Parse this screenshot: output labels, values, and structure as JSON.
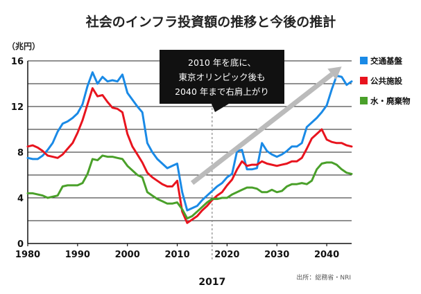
{
  "chart_data": {
    "type": "line",
    "title": "社会のインフラ投資額の推移と今後の推計",
    "ylabel": "（兆円）",
    "xlabel": "",
    "xlim": [
      1980,
      2045
    ],
    "ylim": [
      0,
      16
    ],
    "x_ticks": [
      "1980",
      "1990",
      "2000",
      "2010",
      "2020",
      "2030",
      "2040"
    ],
    "y_ticks": [
      "0",
      "4",
      "8",
      "12",
      "16"
    ],
    "grid": "horizontal",
    "legend_position": "right",
    "series": [
      {
        "name": "交通基盤",
        "color": "#1a8ae6",
        "points": [
          [
            1980,
            7.5
          ],
          [
            1981,
            7.4
          ],
          [
            1982,
            7.4
          ],
          [
            1983,
            7.7
          ],
          [
            1984,
            8.2
          ],
          [
            1985,
            8.8
          ],
          [
            1986,
            9.8
          ],
          [
            1987,
            10.5
          ],
          [
            1988,
            10.7
          ],
          [
            1989,
            11.0
          ],
          [
            1990,
            11.4
          ],
          [
            1991,
            12.2
          ],
          [
            1992,
            13.8
          ],
          [
            1993,
            15.0
          ],
          [
            1994,
            14.0
          ],
          [
            1995,
            14.6
          ],
          [
            1996,
            14.2
          ],
          [
            1997,
            14.3
          ],
          [
            1998,
            14.2
          ],
          [
            1999,
            14.8
          ],
          [
            2000,
            13.2
          ],
          [
            2001,
            12.6
          ],
          [
            2002,
            12.0
          ],
          [
            2003,
            11.5
          ],
          [
            2004,
            8.8
          ],
          [
            2005,
            8.0
          ],
          [
            2006,
            7.4
          ],
          [
            2007,
            7.0
          ],
          [
            2008,
            6.6
          ],
          [
            2009,
            6.8
          ],
          [
            2010,
            7.0
          ],
          [
            2011,
            4.5
          ],
          [
            2012,
            2.9
          ],
          [
            2013,
            3.1
          ],
          [
            2014,
            3.3
          ],
          [
            2015,
            3.8
          ],
          [
            2016,
            4.2
          ],
          [
            2017,
            4.6
          ],
          [
            2018,
            5.0
          ],
          [
            2019,
            5.3
          ],
          [
            2020,
            5.8
          ],
          [
            2021,
            6.1
          ],
          [
            2022,
            8.1
          ],
          [
            2023,
            8.2
          ],
          [
            2024,
            6.5
          ],
          [
            2025,
            6.5
          ],
          [
            2026,
            6.6
          ],
          [
            2027,
            8.8
          ],
          [
            2028,
            8.1
          ],
          [
            2029,
            7.8
          ],
          [
            2030,
            7.6
          ],
          [
            2031,
            7.8
          ],
          [
            2032,
            8.1
          ],
          [
            2033,
            8.5
          ],
          [
            2034,
            8.5
          ],
          [
            2035,
            8.8
          ],
          [
            2036,
            10.2
          ],
          [
            2037,
            10.6
          ],
          [
            2038,
            11.0
          ],
          [
            2039,
            11.5
          ],
          [
            2040,
            12.1
          ],
          [
            2041,
            13.5
          ],
          [
            2042,
            14.7
          ],
          [
            2043,
            14.6
          ],
          [
            2044,
            13.9
          ],
          [
            2045,
            14.2
          ]
        ]
      },
      {
        "name": "公共施設",
        "color": "#e8141e",
        "points": [
          [
            1980,
            8.5
          ],
          [
            1981,
            8.6
          ],
          [
            1982,
            8.4
          ],
          [
            1983,
            8.1
          ],
          [
            1984,
            7.7
          ],
          [
            1985,
            7.6
          ],
          [
            1986,
            7.5
          ],
          [
            1987,
            7.8
          ],
          [
            1988,
            8.3
          ],
          [
            1989,
            8.8
          ],
          [
            1990,
            9.7
          ],
          [
            1991,
            10.8
          ],
          [
            1992,
            12.2
          ],
          [
            1993,
            13.6
          ],
          [
            1994,
            12.9
          ],
          [
            1995,
            13.0
          ],
          [
            1996,
            12.4
          ],
          [
            1997,
            11.9
          ],
          [
            1998,
            11.8
          ],
          [
            1999,
            11.5
          ],
          [
            2000,
            9.6
          ],
          [
            2001,
            8.5
          ],
          [
            2002,
            7.8
          ],
          [
            2003,
            7.1
          ],
          [
            2004,
            6.2
          ],
          [
            2005,
            5.8
          ],
          [
            2006,
            5.5
          ],
          [
            2007,
            5.2
          ],
          [
            2008,
            5.0
          ],
          [
            2009,
            5.0
          ],
          [
            2010,
            5.5
          ],
          [
            2011,
            2.8
          ],
          [
            2012,
            1.8
          ],
          [
            2013,
            2.1
          ],
          [
            2014,
            2.4
          ],
          [
            2015,
            2.9
          ],
          [
            2016,
            3.3
          ],
          [
            2017,
            3.8
          ],
          [
            2018,
            4.2
          ],
          [
            2019,
            4.5
          ],
          [
            2020,
            5.1
          ],
          [
            2021,
            5.6
          ],
          [
            2022,
            6.5
          ],
          [
            2023,
            7.2
          ],
          [
            2024,
            6.8
          ],
          [
            2025,
            6.9
          ],
          [
            2026,
            6.9
          ],
          [
            2027,
            7.2
          ],
          [
            2028,
            7.0
          ],
          [
            2029,
            6.9
          ],
          [
            2030,
            6.8
          ],
          [
            2031,
            6.9
          ],
          [
            2032,
            7.0
          ],
          [
            2033,
            7.2
          ],
          [
            2034,
            7.2
          ],
          [
            2035,
            7.5
          ],
          [
            2036,
            8.3
          ],
          [
            2037,
            9.2
          ],
          [
            2038,
            9.6
          ],
          [
            2039,
            10.0
          ],
          [
            2040,
            9.1
          ],
          [
            2041,
            8.9
          ],
          [
            2042,
            8.8
          ],
          [
            2043,
            8.8
          ],
          [
            2044,
            8.6
          ],
          [
            2045,
            8.5
          ]
        ]
      },
      {
        "name": "水・廃棄物",
        "color": "#4aa02a",
        "points": [
          [
            1980,
            4.4
          ],
          [
            1981,
            4.4
          ],
          [
            1982,
            4.3
          ],
          [
            1983,
            4.2
          ],
          [
            1984,
            4.0
          ],
          [
            1985,
            4.1
          ],
          [
            1986,
            4.2
          ],
          [
            1987,
            5.0
          ],
          [
            1988,
            5.1
          ],
          [
            1989,
            5.1
          ],
          [
            1990,
            5.1
          ],
          [
            1991,
            5.3
          ],
          [
            1992,
            6.1
          ],
          [
            1993,
            7.4
          ],
          [
            1994,
            7.3
          ],
          [
            1995,
            7.7
          ],
          [
            1996,
            7.6
          ],
          [
            1997,
            7.6
          ],
          [
            1998,
            7.5
          ],
          [
            1999,
            7.4
          ],
          [
            2000,
            6.8
          ],
          [
            2001,
            6.4
          ],
          [
            2002,
            6.0
          ],
          [
            2003,
            5.8
          ],
          [
            2004,
            4.5
          ],
          [
            2005,
            4.2
          ],
          [
            2006,
            3.9
          ],
          [
            2007,
            3.7
          ],
          [
            2008,
            3.5
          ],
          [
            2009,
            3.5
          ],
          [
            2010,
            3.6
          ],
          [
            2011,
            3.0
          ],
          [
            2012,
            2.2
          ],
          [
            2013,
            2.4
          ],
          [
            2014,
            2.8
          ],
          [
            2015,
            3.2
          ],
          [
            2016,
            3.6
          ],
          [
            2017,
            3.9
          ],
          [
            2018,
            3.9
          ],
          [
            2019,
            4.0
          ],
          [
            2020,
            4.0
          ],
          [
            2021,
            4.3
          ],
          [
            2022,
            4.5
          ],
          [
            2023,
            4.7
          ],
          [
            2024,
            4.9
          ],
          [
            2025,
            4.9
          ],
          [
            2026,
            4.8
          ],
          [
            2027,
            4.5
          ],
          [
            2028,
            4.5
          ],
          [
            2029,
            4.7
          ],
          [
            2030,
            4.5
          ],
          [
            2031,
            4.6
          ],
          [
            2032,
            5.0
          ],
          [
            2033,
            5.2
          ],
          [
            2034,
            5.2
          ],
          [
            2035,
            5.3
          ],
          [
            2036,
            5.2
          ],
          [
            2037,
            5.5
          ],
          [
            2038,
            6.5
          ],
          [
            2039,
            7.0
          ],
          [
            2040,
            7.1
          ],
          [
            2041,
            7.1
          ],
          [
            2042,
            6.9
          ],
          [
            2043,
            6.5
          ],
          [
            2044,
            6.2
          ],
          [
            2045,
            6.1
          ]
        ]
      }
    ],
    "annotations": {
      "callout_lines": [
        "2010 年を底に、",
        "東京オリンピック後も",
        "2040 年まで右肩上がり"
      ],
      "marker_year": 2017,
      "marker_label": "2017",
      "trend_arrow": {
        "from": [
          2013,
          5.3
        ],
        "to": [
          2043,
          15.5
        ],
        "color": "#bbbbbb"
      }
    },
    "source": "出所：総務省・NRI"
  },
  "colors": {
    "axis": "#111111",
    "grid": "#222222",
    "callout_bg": "#111111",
    "marker_line": "#888888"
  }
}
